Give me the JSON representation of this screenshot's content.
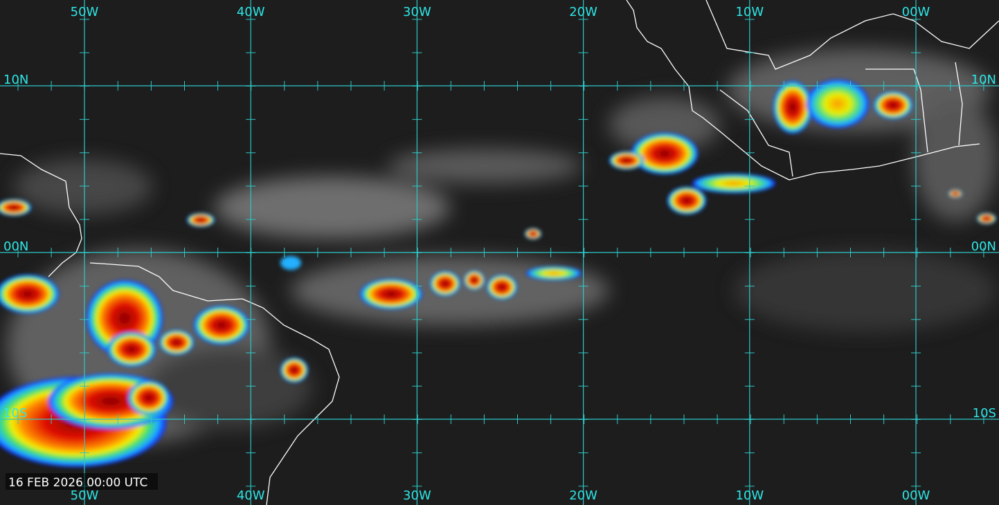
{
  "map": {
    "top_labels": [
      "50W",
      "40W",
      "30W",
      "20W",
      "10W",
      "00W"
    ],
    "bottom_labels": [
      "50W",
      "40W",
      "30W",
      "20W",
      "10W",
      "00W"
    ],
    "left_labels": [
      "10N",
      "00N",
      "10S"
    ],
    "right_labels": [
      "10N",
      "00N",
      "10S"
    ],
    "timestamp": "16 FEB 2026 00:00 UTC"
  }
}
